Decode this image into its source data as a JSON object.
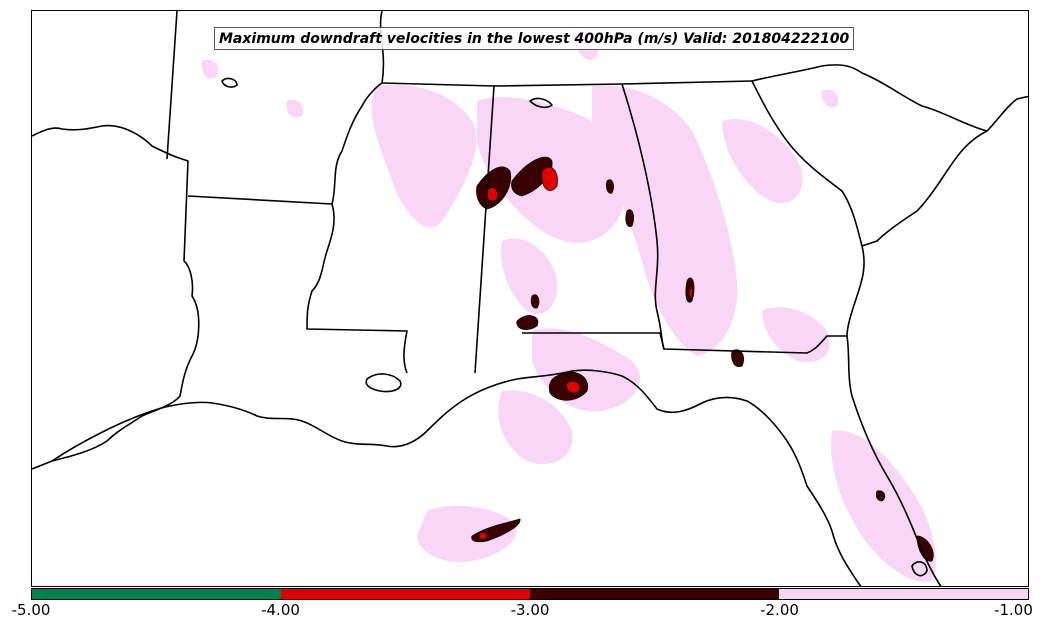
{
  "title": "Maximum downdraft velocities in the lowest 400hPa (m/s) Valid: 201804222100",
  "colors": {
    "border": "#000000",
    "band_pink": "#f9d6f6",
    "band_dark": "#3a0000",
    "band_red": "#e00000",
    "band_green": "#008050"
  },
  "colorbar": {
    "segments": [
      {
        "from": -5.0,
        "to": -4.0,
        "color": "#007f50"
      },
      {
        "from": -4.0,
        "to": -3.0,
        "color": "#e00000"
      },
      {
        "from": -3.0,
        "to": -2.0,
        "color": "#3a0000"
      },
      {
        "from": -2.0,
        "to": -1.0,
        "color": "#f9d6f6"
      }
    ],
    "ticks": [
      "-5.00",
      "-4.00",
      "-3.00",
      "-2.00",
      "-1.00"
    ]
  }
}
